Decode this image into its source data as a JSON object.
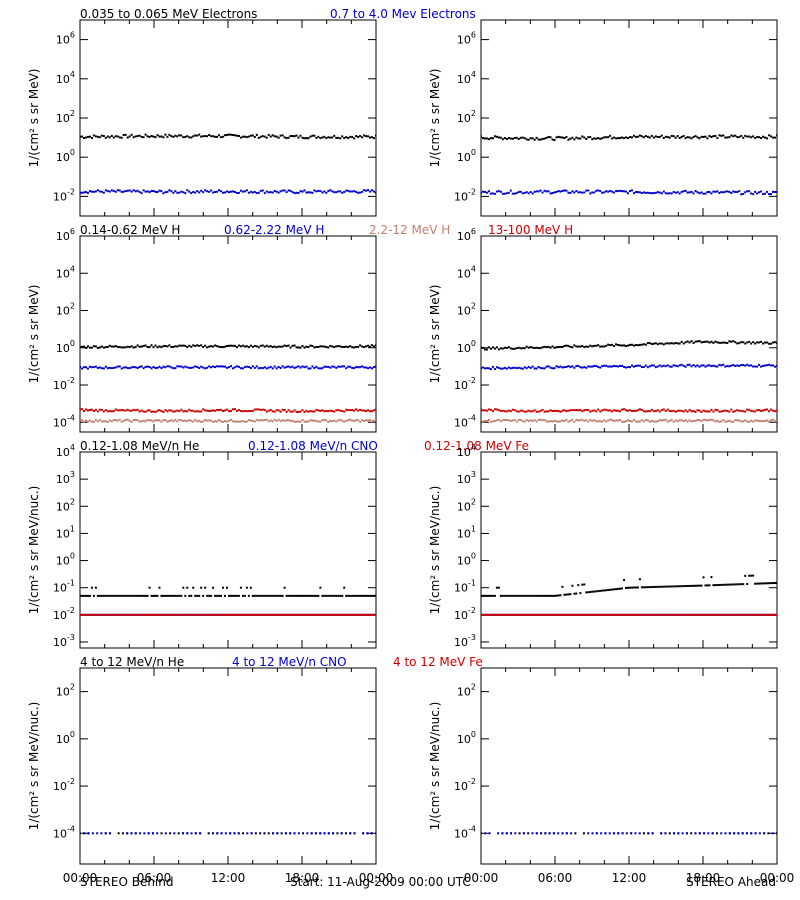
{
  "footer": {
    "left": "STEREO Behind",
    "center": "Start: 11-Aug-2009 00:00 UTC",
    "right": "STEREO Ahead"
  },
  "time_ticks": [
    "00:00",
    "06:00",
    "12:00",
    "18:00",
    "00:00"
  ],
  "rows": [
    {
      "legend": [
        {
          "text": "0.035 to 0.065 MeV Electrons",
          "color": "#000000"
        },
        {
          "text": "0.7 to 4.0 Mev Electrons",
          "color": "#0000cc"
        }
      ],
      "ylabel": "1/(cm² s sr MeV)"
    },
    {
      "legend": [
        {
          "text": "0.14-0.62 MeV H",
          "color": "#000000"
        },
        {
          "text": "0.62-2.22 MeV H",
          "color": "#0000cc"
        },
        {
          "text": "2.2-12 MeV H",
          "color": "#c08070"
        },
        {
          "text": "13-100 MeV H",
          "color": "#cc0000"
        }
      ],
      "ylabel": "1/(cm² s sr MeV)"
    },
    {
      "legend": [
        {
          "text": "0.12-1.08 MeV/n He",
          "color": "#000000"
        },
        {
          "text": "0.12-1.08 MeV/n CNO",
          "color": "#0000cc"
        },
        {
          "text": "0.12-1.08 MeV Fe",
          "color": "#cc0000"
        }
      ],
      "ylabel": "1/(cm² s sr MeV/nuc.)"
    },
    {
      "legend": [
        {
          "text": "4 to 12 MeV/n He",
          "color": "#000000"
        },
        {
          "text": "4 to 12 MeV/n CNO",
          "color": "#0000cc"
        },
        {
          "text": "4 to 12 MeV Fe",
          "color": "#cc0000"
        }
      ],
      "ylabel": "1/(cm² s sr MeV/nuc.)"
    }
  ],
  "chart_data": [
    {
      "type": "scatter",
      "row": 0,
      "spacecraft": "Behind",
      "y_scale": "log",
      "ylim": [
        0.001,
        10000000
      ],
      "y_ticks": [
        {
          "v": 0.01,
          "m": "-2"
        },
        {
          "v": 1,
          "m": "0"
        },
        {
          "v": 100,
          "m": "2"
        },
        {
          "v": 10000,
          "m": "4"
        },
        {
          "v": 1000000,
          "m": "6"
        }
      ],
      "x": [
        "00:00",
        "06:00",
        "12:00",
        "18:00",
        "24:00"
      ],
      "series": [
        {
          "name": "0.035 to 0.065 MeV Electrons",
          "color": "#000000",
          "values": [
            11,
            12,
            12,
            11,
            11
          ]
        },
        {
          "name": "0.7 to 4.0 Mev Electrons",
          "color": "#0000cc",
          "values": [
            0.018,
            0.017,
            0.018,
            0.017,
            0.018
          ]
        }
      ]
    },
    {
      "type": "scatter",
      "row": 0,
      "spacecraft": "Ahead",
      "y_scale": "log",
      "ylim": [
        0.001,
        10000000
      ],
      "y_ticks": [
        {
          "v": 0.01,
          "m": "-2"
        },
        {
          "v": 1,
          "m": "0"
        },
        {
          "v": 100,
          "m": "2"
        },
        {
          "v": 10000,
          "m": "4"
        },
        {
          "v": 1000000,
          "m": "6"
        }
      ],
      "x": [
        "00:00",
        "06:00",
        "12:00",
        "18:00",
        "24:00"
      ],
      "series": [
        {
          "name": "0.035 to 0.065 MeV Electrons",
          "color": "#000000",
          "values": [
            10,
            9,
            11,
            11,
            11
          ]
        },
        {
          "name": "0.7 to 4.0 Mev Electrons",
          "color": "#0000cc",
          "values": [
            0.016,
            0.017,
            0.017,
            0.016,
            0.015
          ]
        }
      ]
    },
    {
      "type": "scatter",
      "row": 1,
      "spacecraft": "Behind",
      "y_scale": "log",
      "ylim": [
        3e-05,
        1000000
      ],
      "y_ticks": [
        {
          "v": 0.0001,
          "m": "-4"
        },
        {
          "v": 0.01,
          "m": "-2"
        },
        {
          "v": 1,
          "m": "0"
        },
        {
          "v": 100,
          "m": "2"
        },
        {
          "v": 10000,
          "m": "4"
        },
        {
          "v": 1000000,
          "m": "6"
        }
      ],
      "x": [
        "00:00",
        "06:00",
        "12:00",
        "18:00",
        "24:00"
      ],
      "series": [
        {
          "name": "0.14-0.62 MeV H",
          "color": "#000000",
          "values": [
            1.1,
            1.2,
            1.2,
            1.15,
            1.2
          ]
        },
        {
          "name": "0.62-2.22 MeV H",
          "color": "#0000cc",
          "values": [
            0.085,
            0.09,
            0.09,
            0.088,
            0.09
          ]
        },
        {
          "name": "2.2-12 MeV H",
          "color": "#c08070",
          "values": [
            0.00012,
            0.00012,
            0.00012,
            0.00012,
            0.00012
          ]
        },
        {
          "name": "13-100 MeV H",
          "color": "#cc0000",
          "values": [
            0.00045,
            0.0004,
            0.00045,
            0.0004,
            0.00045
          ]
        }
      ]
    },
    {
      "type": "scatter",
      "row": 1,
      "spacecraft": "Ahead",
      "y_scale": "log",
      "ylim": [
        3e-05,
        1000000
      ],
      "y_ticks": [
        {
          "v": 0.0001,
          "m": "-4"
        },
        {
          "v": 0.01,
          "m": "-2"
        },
        {
          "v": 1,
          "m": "0"
        },
        {
          "v": 100,
          "m": "2"
        },
        {
          "v": 10000,
          "m": "4"
        },
        {
          "v": 1000000,
          "m": "6"
        }
      ],
      "x": [
        "00:00",
        "06:00",
        "12:00",
        "18:00",
        "24:00"
      ],
      "series": [
        {
          "name": "0.14-0.62 MeV H",
          "color": "#000000",
          "values": [
            0.9,
            1.1,
            1.4,
            2.1,
            1.8
          ]
        },
        {
          "name": "0.62-2.22 MeV H",
          "color": "#0000cc",
          "values": [
            0.08,
            0.09,
            0.1,
            0.11,
            0.11
          ]
        },
        {
          "name": "2.2-12 MeV H",
          "color": "#c08070",
          "values": [
            0.00012,
            0.00012,
            0.00012,
            0.00012,
            0.00012
          ]
        },
        {
          "name": "13-100 MeV H",
          "color": "#cc0000",
          "values": [
            0.00045,
            0.0004,
            0.00045,
            0.0004,
            0.00045
          ]
        }
      ]
    },
    {
      "type": "scatter",
      "row": 2,
      "spacecraft": "Behind",
      "y_scale": "log",
      "ylim": [
        0.0006,
        10000
      ],
      "y_ticks": [
        {
          "v": 0.001,
          "m": "-3"
        },
        {
          "v": 0.01,
          "m": "-2"
        },
        {
          "v": 0.1,
          "m": "-1"
        },
        {
          "v": 1,
          "m": "0"
        },
        {
          "v": 10,
          "m": "1"
        },
        {
          "v": 100,
          "m": "2"
        },
        {
          "v": 1000,
          "m": "3"
        },
        {
          "v": 10000,
          "m": "4"
        }
      ],
      "x": [
        "00:00",
        "06:00",
        "12:00",
        "18:00",
        "24:00"
      ],
      "series": [
        {
          "name": "0.12-1.08 MeV/n He",
          "color": "#000000",
          "values": [
            0.05,
            0.05,
            0.05,
            0.05,
            0.05
          ]
        },
        {
          "name": "0.12-1.08 MeV/n CNO",
          "color": "#0000cc",
          "values": [
            0.01,
            0.01,
            0.01,
            0.01,
            0.01
          ]
        },
        {
          "name": "0.12-1.08 MeV Fe",
          "color": "#cc0000",
          "values": [
            0.01,
            0.01,
            0.01,
            0.01,
            0.01
          ]
        }
      ]
    },
    {
      "type": "scatter",
      "row": 2,
      "spacecraft": "Ahead",
      "y_scale": "log",
      "ylim": [
        0.0006,
        10000
      ],
      "y_ticks": [
        {
          "v": 0.001,
          "m": "-3"
        },
        {
          "v": 0.01,
          "m": "-2"
        },
        {
          "v": 0.1,
          "m": "-1"
        },
        {
          "v": 1,
          "m": "0"
        },
        {
          "v": 10,
          "m": "1"
        },
        {
          "v": 100,
          "m": "2"
        },
        {
          "v": 1000,
          "m": "3"
        },
        {
          "v": 10000,
          "m": "4"
        }
      ],
      "x": [
        "00:00",
        "06:00",
        "12:00",
        "18:00",
        "24:00"
      ],
      "series": [
        {
          "name": "0.12-1.08 MeV/n He",
          "color": "#000000",
          "values": [
            0.05,
            0.05,
            0.1,
            0.12,
            0.15
          ]
        },
        {
          "name": "0.12-1.08 MeV/n CNO",
          "color": "#0000cc",
          "values": [
            0.01,
            0.01,
            0.01,
            0.01,
            0.01
          ]
        },
        {
          "name": "0.12-1.08 MeV Fe",
          "color": "#cc0000",
          "values": [
            0.01,
            0.01,
            0.01,
            0.01,
            0.01
          ]
        }
      ]
    },
    {
      "type": "scatter",
      "row": 3,
      "spacecraft": "Behind",
      "y_scale": "log",
      "ylim": [
        5e-06,
        1000
      ],
      "y_ticks": [
        {
          "v": 0.0001,
          "m": "-4"
        },
        {
          "v": 0.01,
          "m": "-2"
        },
        {
          "v": 1,
          "m": "0"
        },
        {
          "v": 100,
          "m": "2"
        }
      ],
      "x": [
        "00:00",
        "06:00",
        "12:00",
        "18:00",
        "24:00"
      ],
      "series": [
        {
          "name": "4 to 12 MeV/n He",
          "color": "#000000",
          "values": [
            0.0001,
            0.0001,
            0.0001,
            0.0001,
            0.0001
          ]
        },
        {
          "name": "4 to 12 MeV/n CNO",
          "color": "#0000cc",
          "values": [
            0.0001,
            0.0001,
            0.0001,
            0.0001,
            0.0001
          ]
        },
        {
          "name": "4 to 12 MeV Fe",
          "color": "#cc0000",
          "values": []
        }
      ]
    },
    {
      "type": "scatter",
      "row": 3,
      "spacecraft": "Ahead",
      "y_scale": "log",
      "ylim": [
        5e-06,
        1000
      ],
      "y_ticks": [
        {
          "v": 0.0001,
          "m": "-4"
        },
        {
          "v": 0.01,
          "m": "-2"
        },
        {
          "v": 1,
          "m": "0"
        },
        {
          "v": 100,
          "m": "2"
        }
      ],
      "x": [
        "00:00",
        "06:00",
        "12:00",
        "18:00",
        "24:00"
      ],
      "series": [
        {
          "name": "4 to 12 MeV/n He",
          "color": "#000000",
          "values": [
            0.0001,
            0.0001,
            0.0001,
            0.0001,
            0.0001
          ]
        },
        {
          "name": "4 to 12 MeV/n CNO",
          "color": "#0000cc",
          "values": [
            0.0001,
            0.0001,
            0.0001,
            0.0001,
            0.0001
          ]
        },
        {
          "name": "4 to 12 MeV Fe",
          "color": "#cc0000",
          "values": []
        }
      ]
    }
  ]
}
